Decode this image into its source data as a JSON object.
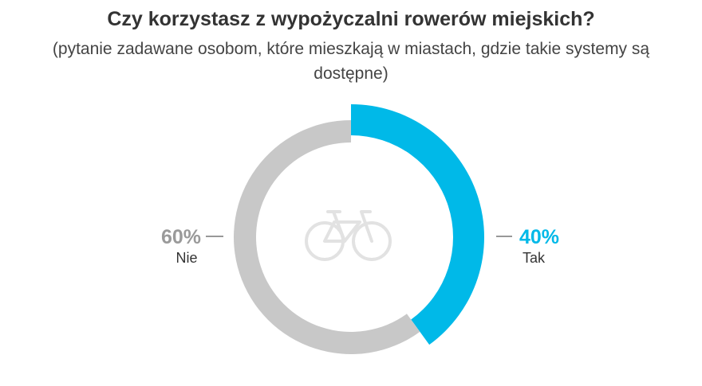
{
  "chart_data": {
    "type": "pie",
    "style": "donut",
    "title": "Czy korzystasz z wypożyczalni rowerów miejskich?",
    "subtitle": "(pytanie zadawane osobom, które mieszkają w miastach, gdzie takie systemy są dostępne)",
    "center_icon": "bicycle-icon",
    "slices": [
      {
        "label": "Tak",
        "value": 40,
        "value_label": "40%",
        "color": "#00b9e8",
        "label_color": "#00b9e8",
        "side": "right"
      },
      {
        "label": "Nie",
        "value": 60,
        "value_label": "60%",
        "color": "#c8c8c8",
        "label_color": "#9a9a9a",
        "side": "left"
      }
    ]
  }
}
